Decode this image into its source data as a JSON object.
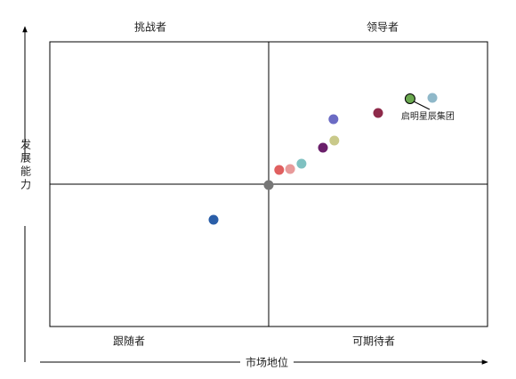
{
  "chart_data": {
    "type": "scatter",
    "quadrants": {
      "top_left": "挑战者",
      "top_right": "领导者",
      "bottom_left": "跟随者",
      "bottom_right": "可期待者"
    },
    "x_label": "市场地位",
    "y_label": "发展能力",
    "xlim": [
      0,
      10
    ],
    "ylim": [
      0,
      10
    ],
    "x": [
      8.23,
      8.74,
      7.5,
      6.48,
      6.5,
      6.24,
      5.75,
      5.24,
      5.49,
      5.0,
      3.74
    ],
    "values": [
      8.0,
      8.03,
      7.5,
      7.28,
      6.53,
      6.28,
      5.72,
      5.5,
      5.53,
      4.97,
      3.75
    ],
    "colors": [
      "#6aa84f",
      "#8fb8c9",
      "#8e2a4a",
      "#6b6bc4",
      "#c9c98a",
      "#6a1f6a",
      "#7fc1c1",
      "#e06060",
      "#e89a9a",
      "#777777",
      "#2a5ea8"
    ],
    "labels": [
      "启明星辰集团",
      null,
      null,
      null,
      null,
      null,
      null,
      null,
      null,
      null,
      null
    ]
  }
}
